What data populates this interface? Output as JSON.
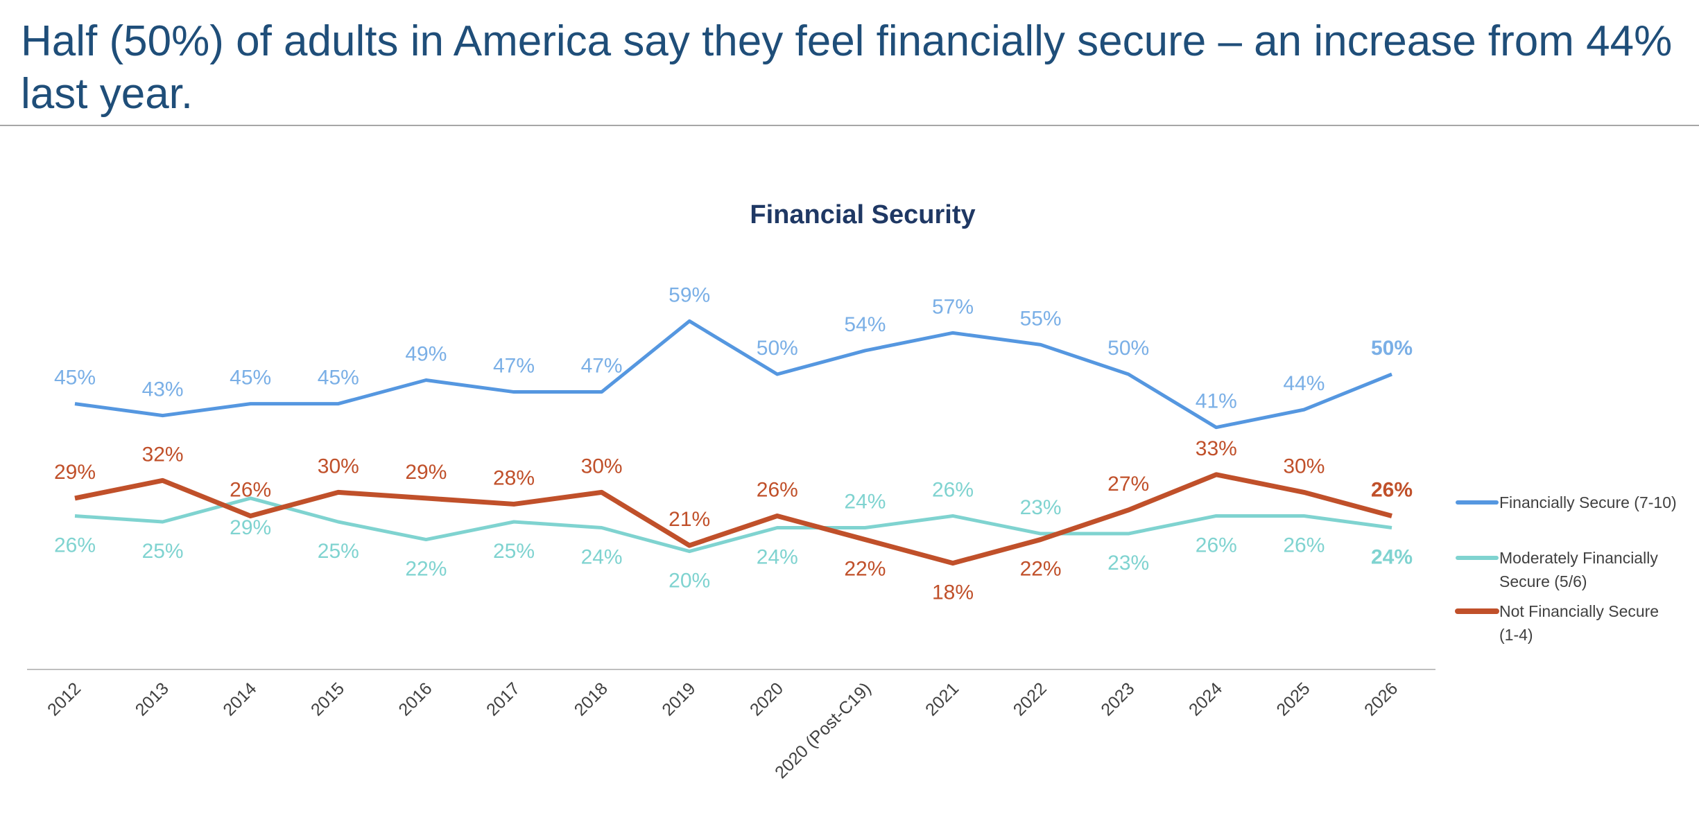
{
  "headline": "Half (50%) of adults in America say they feel financially secure – an increase from 44% last year.",
  "chart_data": {
    "type": "line",
    "title": "Financial Security",
    "xlabel": "",
    "ylabel": "",
    "ylim": [
      0,
      60
    ],
    "grid": false,
    "legend_position": "right",
    "categories": [
      "2012",
      "2013",
      "2014",
      "2015",
      "2016",
      "2017",
      "2018",
      "2019",
      "2020",
      "2020 (Post-C19)",
      "2021",
      "2022",
      "2023",
      "2024",
      "2025",
      "2026"
    ],
    "series": [
      {
        "name": "Financially Secure (7-10)",
        "color": "#5597E0",
        "label_color": "#7AAFE6",
        "values": [
          45,
          43,
          45,
          45,
          49,
          47,
          47,
          59,
          50,
          54,
          57,
          55,
          50,
          41,
          44,
          50
        ]
      },
      {
        "name": "Moderately Financially Secure (5/6)",
        "color": "#7FD3D0",
        "label_color": "#7FD3D0",
        "values": [
          26,
          25,
          29,
          25,
          22,
          25,
          24,
          20,
          24,
          24,
          26,
          23,
          23,
          26,
          26,
          24
        ]
      },
      {
        "name": "Not Financially Secure (1-4)",
        "color": "#C0502A",
        "label_color": "#C0502A",
        "values": [
          29,
          32,
          26,
          30,
          29,
          28,
          30,
          21,
          26,
          22,
          18,
          22,
          27,
          33,
          30,
          26
        ]
      }
    ]
  }
}
